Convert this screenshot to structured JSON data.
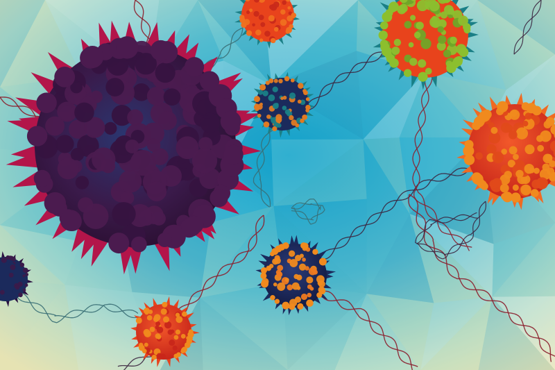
{
  "scene": {
    "palette": {
      "background_light": "#e9e6b5",
      "background_mid": "#9fd6cf",
      "background_deep": "#1da2c8",
      "strand_dark": "#3b2640",
      "strand_red": "#8c1f2e",
      "strand_teal": "#3a6f76",
      "virus_large_body": "#3e1740",
      "virus_large_spike": "#b3154a",
      "virus_orange_body": "#e8431c",
      "virus_orange_spike": "#f08a1e",
      "virus_green_spike": "#8cbf2e",
      "virus_teal_spike": "#1a7f86",
      "virus_navy_core": "#1b2a5c"
    },
    "objects": [
      "large-purple-virus-particle",
      "green-orange-virus-particle",
      "red-orange-virus-particle",
      "small-orange-teal-virus-particle",
      "blue-orange-virus-particle",
      "small-red-virus-particle",
      "dna-strands",
      "polygon-background"
    ]
  }
}
